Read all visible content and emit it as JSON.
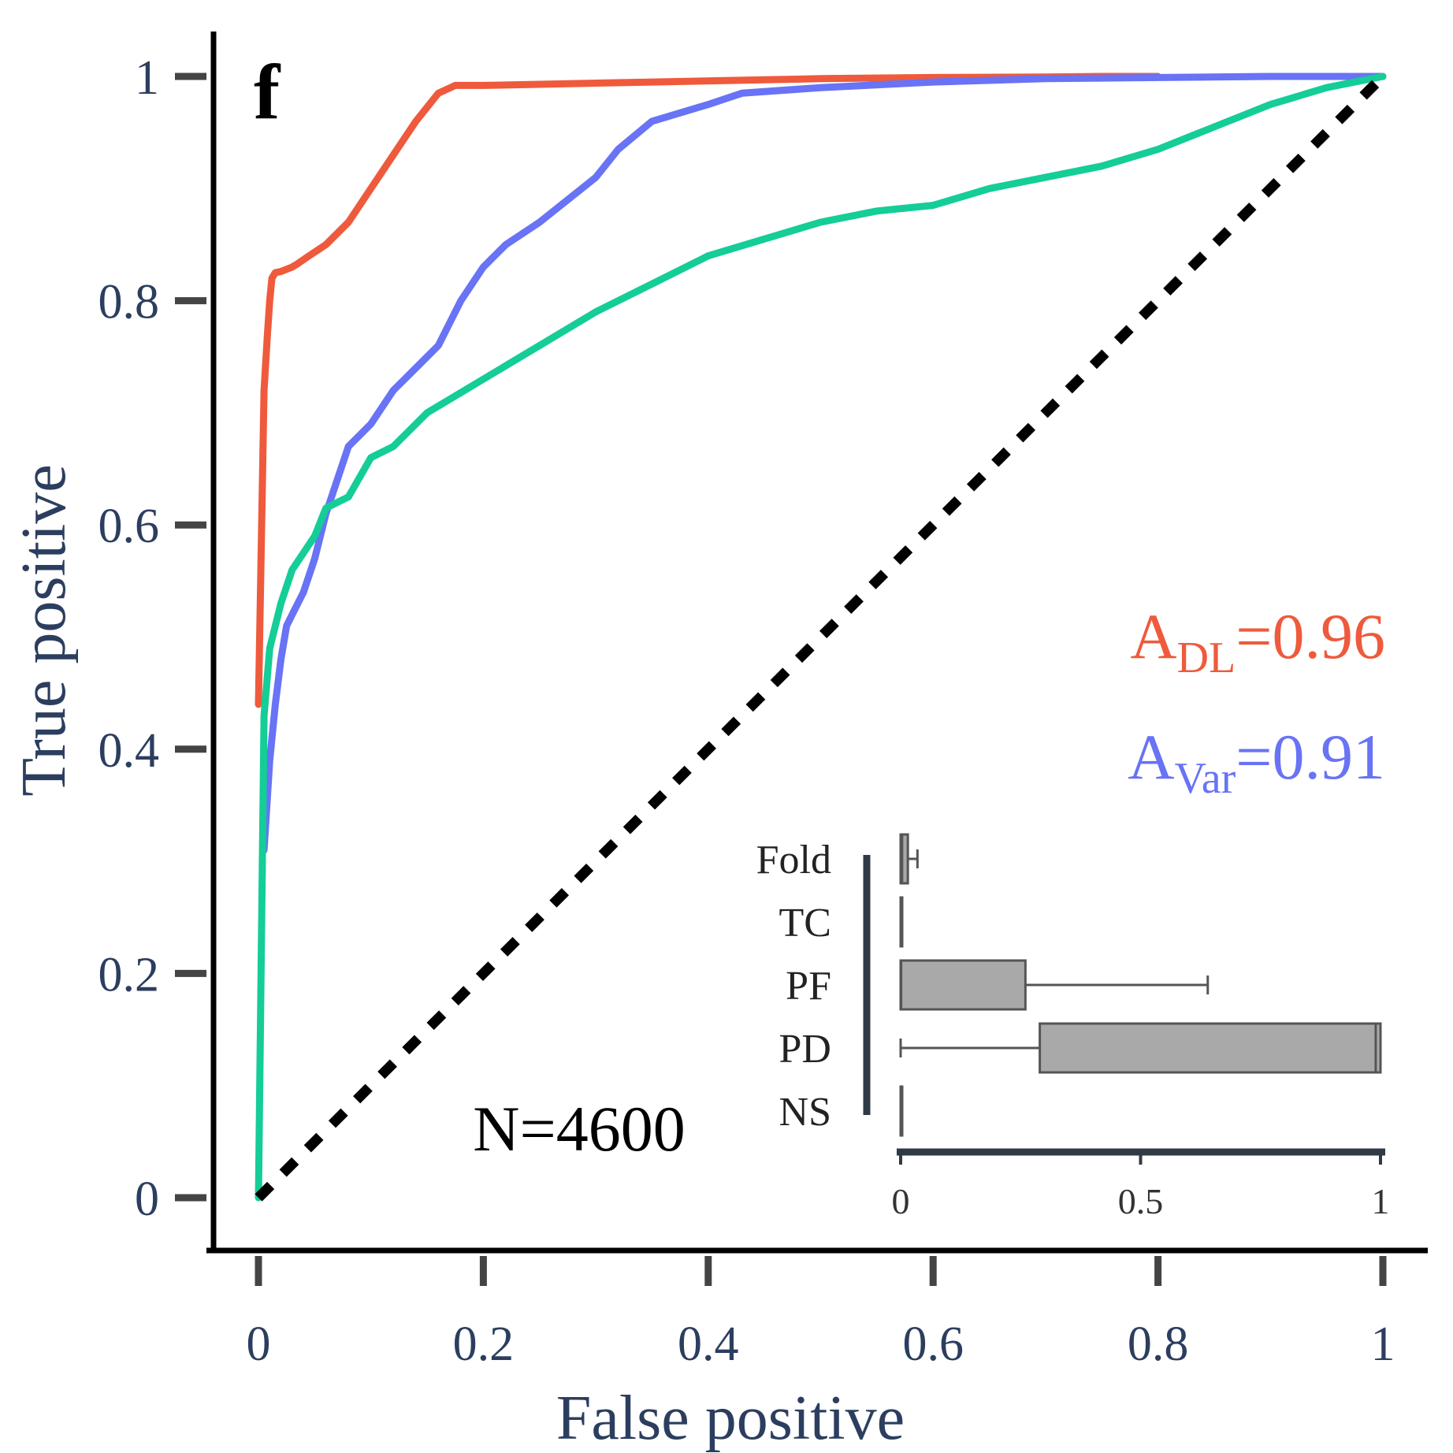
{
  "chart_data": [
    {
      "type": "line",
      "panel_letter": "f",
      "xlabel": "False positive",
      "ylabel": "True positive",
      "xlim": [
        0,
        1
      ],
      "ylim": [
        0,
        1
      ],
      "xticks": [
        "0",
        "0.2",
        "0.4",
        "0.6",
        "0.8",
        "1"
      ],
      "yticks": [
        "0",
        "0.2",
        "0.4",
        "0.6",
        "0.8",
        "1"
      ],
      "grid": false,
      "colors": {
        "red": "#ef5a3c",
        "blue": "#6873f5",
        "green": "#14cd97",
        "diagonal": "#000000",
        "axis_text": "#2c3e5f"
      },
      "annotations": {
        "a_dl_main": "A",
        "a_dl_sub": "DL",
        "a_dl_val": "=0.96",
        "a_var_main": "A",
        "a_var_sub": "Var",
        "a_var_val": "=0.91",
        "n_label": "N=4600"
      },
      "series": [
        {
          "color": "#ef5a3c",
          "x": [
            0,
            0.005,
            0.008,
            0.01,
            0.012,
            0.015,
            0.02,
            0.03,
            0.035,
            0.045,
            0.06,
            0.08,
            0.1,
            0.12,
            0.14,
            0.16,
            0.175,
            0.2,
            0.25,
            0.35,
            0.45,
            0.5,
            0.6,
            0.7,
            0.75,
            0.8
          ],
          "y": [
            0.44,
            0.72,
            0.77,
            0.8,
            0.82,
            0.825,
            0.826,
            0.83,
            0.833,
            0.84,
            0.85,
            0.87,
            0.9,
            0.93,
            0.96,
            0.985,
            0.992,
            0.992,
            0.993,
            0.995,
            0.997,
            0.998,
            0.999,
            0.9995,
            1.0,
            1.0
          ]
        },
        {
          "color": "#6873f5",
          "x": [
            0.005,
            0.01,
            0.015,
            0.02,
            0.025,
            0.03,
            0.04,
            0.05,
            0.06,
            0.07,
            0.08,
            0.09,
            0.1,
            0.12,
            0.14,
            0.16,
            0.18,
            0.2,
            0.22,
            0.25,
            0.3,
            0.32,
            0.35,
            0.4,
            0.43,
            0.5,
            0.6,
            0.7,
            0.8,
            0.9,
            1.0
          ],
          "y": [
            0.31,
            0.39,
            0.44,
            0.48,
            0.51,
            0.52,
            0.54,
            0.57,
            0.61,
            0.64,
            0.67,
            0.68,
            0.69,
            0.72,
            0.74,
            0.76,
            0.8,
            0.83,
            0.85,
            0.87,
            0.91,
            0.935,
            0.96,
            0.975,
            0.985,
            0.99,
            0.995,
            0.998,
            0.999,
            1.0,
            1.0
          ]
        },
        {
          "color": "#14cd97",
          "x": [
            0,
            0.005,
            0.01,
            0.02,
            0.03,
            0.05,
            0.06,
            0.08,
            0.1,
            0.12,
            0.15,
            0.2,
            0.25,
            0.3,
            0.35,
            0.4,
            0.45,
            0.5,
            0.55,
            0.6,
            0.65,
            0.7,
            0.75,
            0.8,
            0.85,
            0.9,
            0.95,
            1.0
          ],
          "y": [
            0,
            0.43,
            0.49,
            0.53,
            0.56,
            0.59,
            0.615,
            0.625,
            0.66,
            0.67,
            0.7,
            0.73,
            0.76,
            0.79,
            0.815,
            0.84,
            0.855,
            0.87,
            0.88,
            0.885,
            0.9,
            0.91,
            0.92,
            0.935,
            0.955,
            0.975,
            0.99,
            1.0
          ]
        },
        {
          "color": "#000000",
          "dashed": true,
          "x": [
            0,
            1
          ],
          "y": [
            0,
            1
          ]
        }
      ]
    },
    {
      "type": "box",
      "orientation": "horizontal",
      "categories": [
        "Fold",
        "TC",
        "PF",
        "PD",
        "NS"
      ],
      "xlim": [
        0,
        1
      ],
      "xticks": [
        "0",
        "0.5",
        "1"
      ],
      "box_color": "#a9a9a9",
      "boxes": [
        {
          "category": "Fold",
          "whisker_low": 0,
          "q1": 0,
          "median": 0.003,
          "q3": 0.015,
          "whisker_high": 0.035
        },
        {
          "category": "TC",
          "whisker_low": 0,
          "q1": 0,
          "median": 0,
          "q3": 0.002,
          "whisker_high": 0.002
        },
        {
          "category": "PF",
          "whisker_low": 0,
          "q1": 0,
          "median": 0.001,
          "q3": 0.26,
          "whisker_high": 0.64
        },
        {
          "category": "PD",
          "whisker_low": 0,
          "q1": 0.29,
          "median": 0.99,
          "q3": 1.0,
          "whisker_high": 1.0
        },
        {
          "category": "NS",
          "whisker_low": 0,
          "q1": 0,
          "median": 0,
          "q3": 0.003,
          "whisker_high": 0.003
        }
      ]
    }
  ]
}
